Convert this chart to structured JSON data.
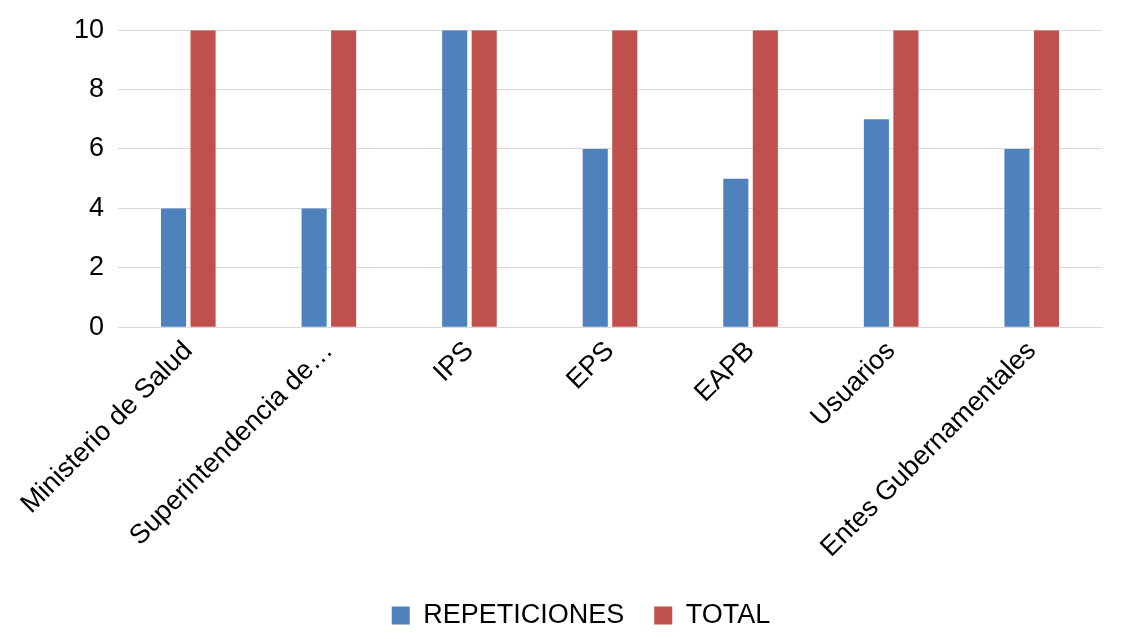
{
  "chart_data": {
    "type": "bar",
    "categories": [
      "Ministerio de Salud",
      "Superintendencia de…",
      "IPS",
      "EPS",
      "EAPB",
      "Usuarios",
      "Entes Gubernamentales"
    ],
    "series": [
      {
        "name": "REPETICIONES",
        "color": "#4f81bd",
        "values": [
          4,
          4,
          10,
          6,
          5,
          7,
          6
        ]
      },
      {
        "name": "TOTAL",
        "color": "#c0504d",
        "values": [
          10,
          10,
          10,
          10,
          10,
          10,
          10
        ]
      }
    ],
    "ylim": [
      0,
      10
    ],
    "yticks": [
      0,
      2,
      4,
      6,
      8,
      10
    ],
    "grid": "y",
    "legend": "bottom"
  }
}
